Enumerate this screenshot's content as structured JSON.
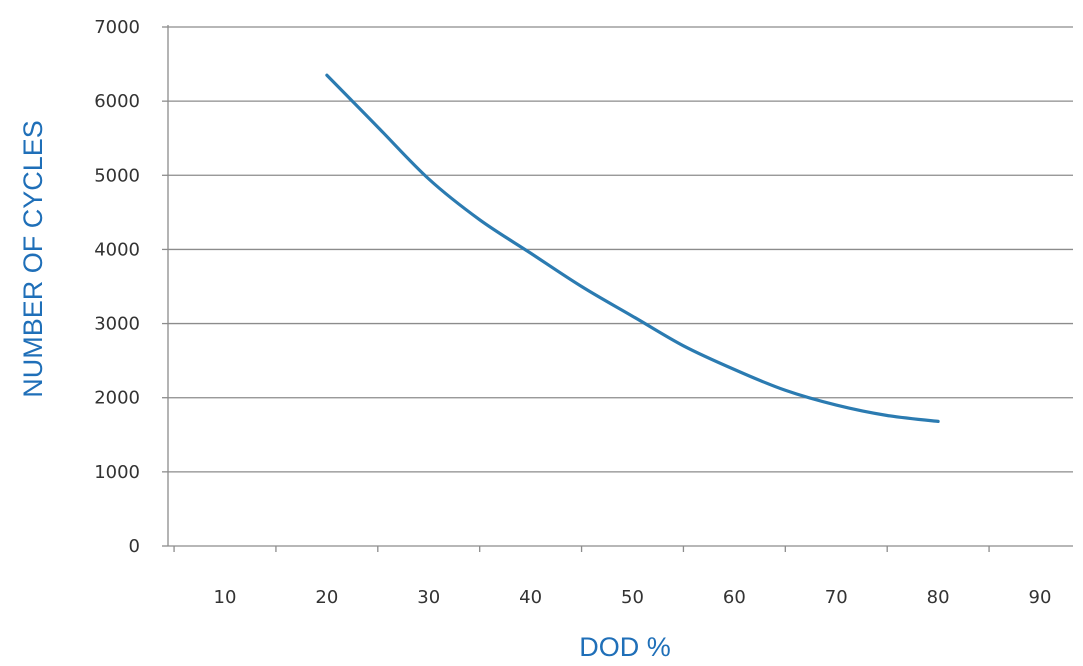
{
  "chart_data": {
    "type": "line",
    "title": "",
    "xlabel": "DOD %",
    "ylabel": "NUMBER OF CYCLES",
    "x_ticks": [
      "10",
      "20",
      "30",
      "40",
      "50",
      "60",
      "70",
      "80",
      "90"
    ],
    "y_ticks": [
      "0",
      "1000",
      "2000",
      "3000",
      "4000",
      "5000",
      "6000",
      "7000"
    ],
    "xlim": [
      5,
      95
    ],
    "ylim": [
      0,
      7000
    ],
    "grid": "horizontal",
    "series": [
      {
        "x": [
          20,
          25,
          30,
          35,
          40,
          45,
          50,
          55,
          60,
          65,
          70,
          75,
          80
        ],
        "y": [
          6350,
          5650,
          4950,
          4400,
          3950,
          3500,
          3100,
          2700,
          2380,
          2100,
          1900,
          1760,
          1680
        ]
      }
    ],
    "colors": {
      "line": "#2b7bb1",
      "axis_title": "#1f6fb8",
      "grid": "#8c8c8c"
    }
  }
}
